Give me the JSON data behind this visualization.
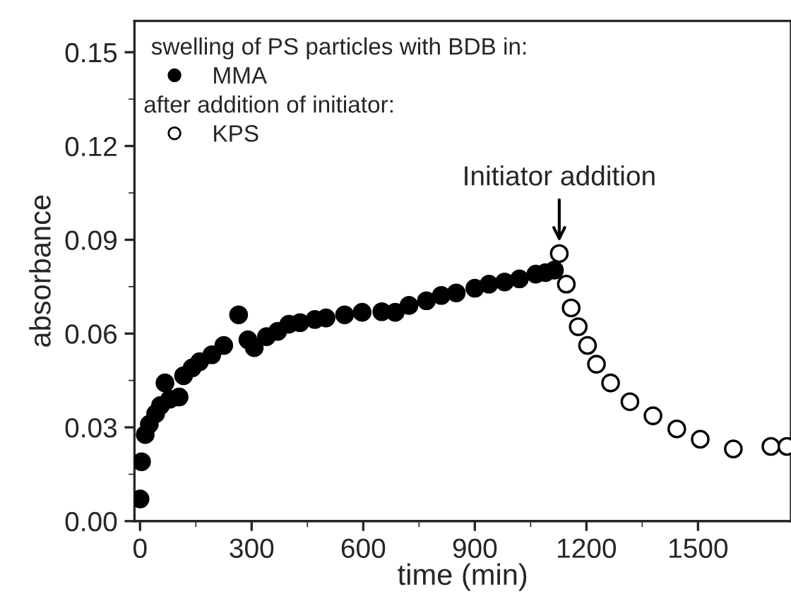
{
  "chart_data": {
    "type": "scatter",
    "xlabel": "time (min)",
    "ylabel": "absorbance",
    "legend_title": "swelling of PS particles with BDB in:",
    "xlim": [
      -15,
      1750
    ],
    "ylim": [
      0,
      0.16
    ],
    "xticks": [
      0,
      300,
      600,
      900,
      1200,
      1500
    ],
    "yticks": [
      {
        "value": 0,
        "label": "0.00"
      },
      {
        "value": 0.03,
        "label": "0.03"
      },
      {
        "value": 0.06,
        "label": "0.06"
      },
      {
        "value": 0.09,
        "label": "0.09"
      },
      {
        "value": 0.12,
        "label": "0.12"
      },
      {
        "value": 0.15,
        "label": "0.15"
      }
    ],
    "legend": "top left",
    "marker": "circle",
    "grid": false,
    "annotations": [
      "after addition of initiator:",
      {
        "text": "Initiator addition",
        "x": 1127,
        "y": 0.0856
      }
    ],
    "series": [
      {
        "name": "MMA",
        "color": "#000000",
        "x": [
          0,
          4,
          14,
          25,
          42,
          55,
          67,
          80,
          105,
          117,
          140,
          160,
          193,
          225,
          265,
          290,
          307,
          340,
          370,
          400,
          430,
          470,
          500,
          550,
          597,
          650,
          686,
          723,
          770,
          810,
          850,
          900,
          938,
          980,
          1020,
          1064,
          1090,
          1114
        ],
        "values": [
          0.0071,
          0.019,
          0.0277,
          0.031,
          0.0344,
          0.037,
          0.0442,
          0.039,
          0.0397,
          0.0465,
          0.049,
          0.051,
          0.0532,
          0.0562,
          0.066,
          0.058,
          0.0555,
          0.059,
          0.0607,
          0.063,
          0.0635,
          0.0645,
          0.065,
          0.066,
          0.0668,
          0.067,
          0.0668,
          0.069,
          0.0705,
          0.0722,
          0.073,
          0.0745,
          0.0758,
          0.0765,
          0.0775,
          0.079,
          0.0795,
          0.0803
        ]
      },
      {
        "name": "KPS",
        "color": "#ffffff",
        "x": [
          1127,
          1146,
          1159,
          1178,
          1203,
          1227,
          1265,
          1317,
          1379,
          1443,
          1506,
          1595,
          1696,
          1739
        ],
        "values": [
          0.0856,
          0.0758,
          0.0682,
          0.0622,
          0.0562,
          0.0502,
          0.0442,
          0.0382,
          0.0337,
          0.0295,
          0.0262,
          0.0231,
          0.0239,
          0.0239
        ]
      }
    ]
  }
}
